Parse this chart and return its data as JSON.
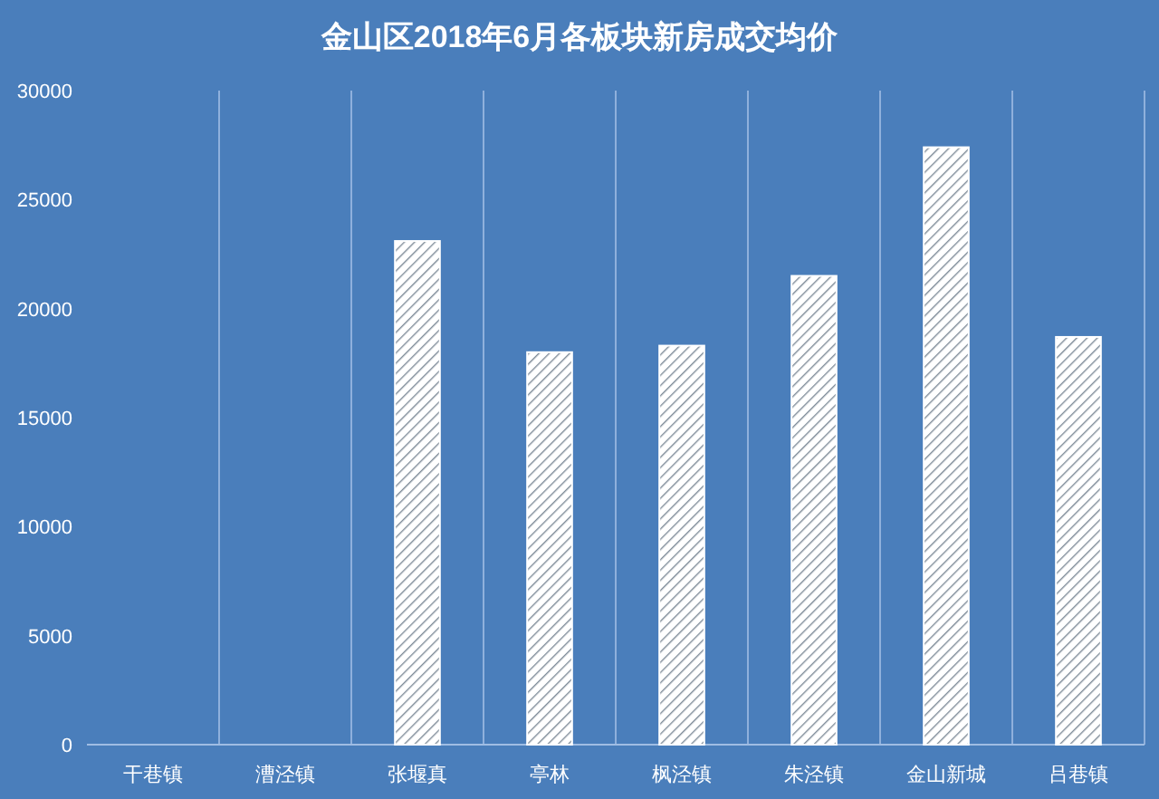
{
  "chart_data": {
    "type": "bar",
    "title": "金山区2018年6月各板块新房成交均价",
    "categories": [
      "干巷镇",
      "漕泾镇",
      "张堰真",
      "亭林",
      "枫泾镇",
      "朱泾镇",
      "金山新城",
      "吕巷镇"
    ],
    "values": [
      null,
      null,
      23100,
      18000,
      18300,
      21500,
      27400,
      18700
    ],
    "color": "#ffffff",
    "ylim": [
      0,
      30000
    ],
    "yticks": [
      0,
      5000,
      10000,
      15000,
      20000,
      25000,
      30000
    ],
    "grid": "x"
  }
}
